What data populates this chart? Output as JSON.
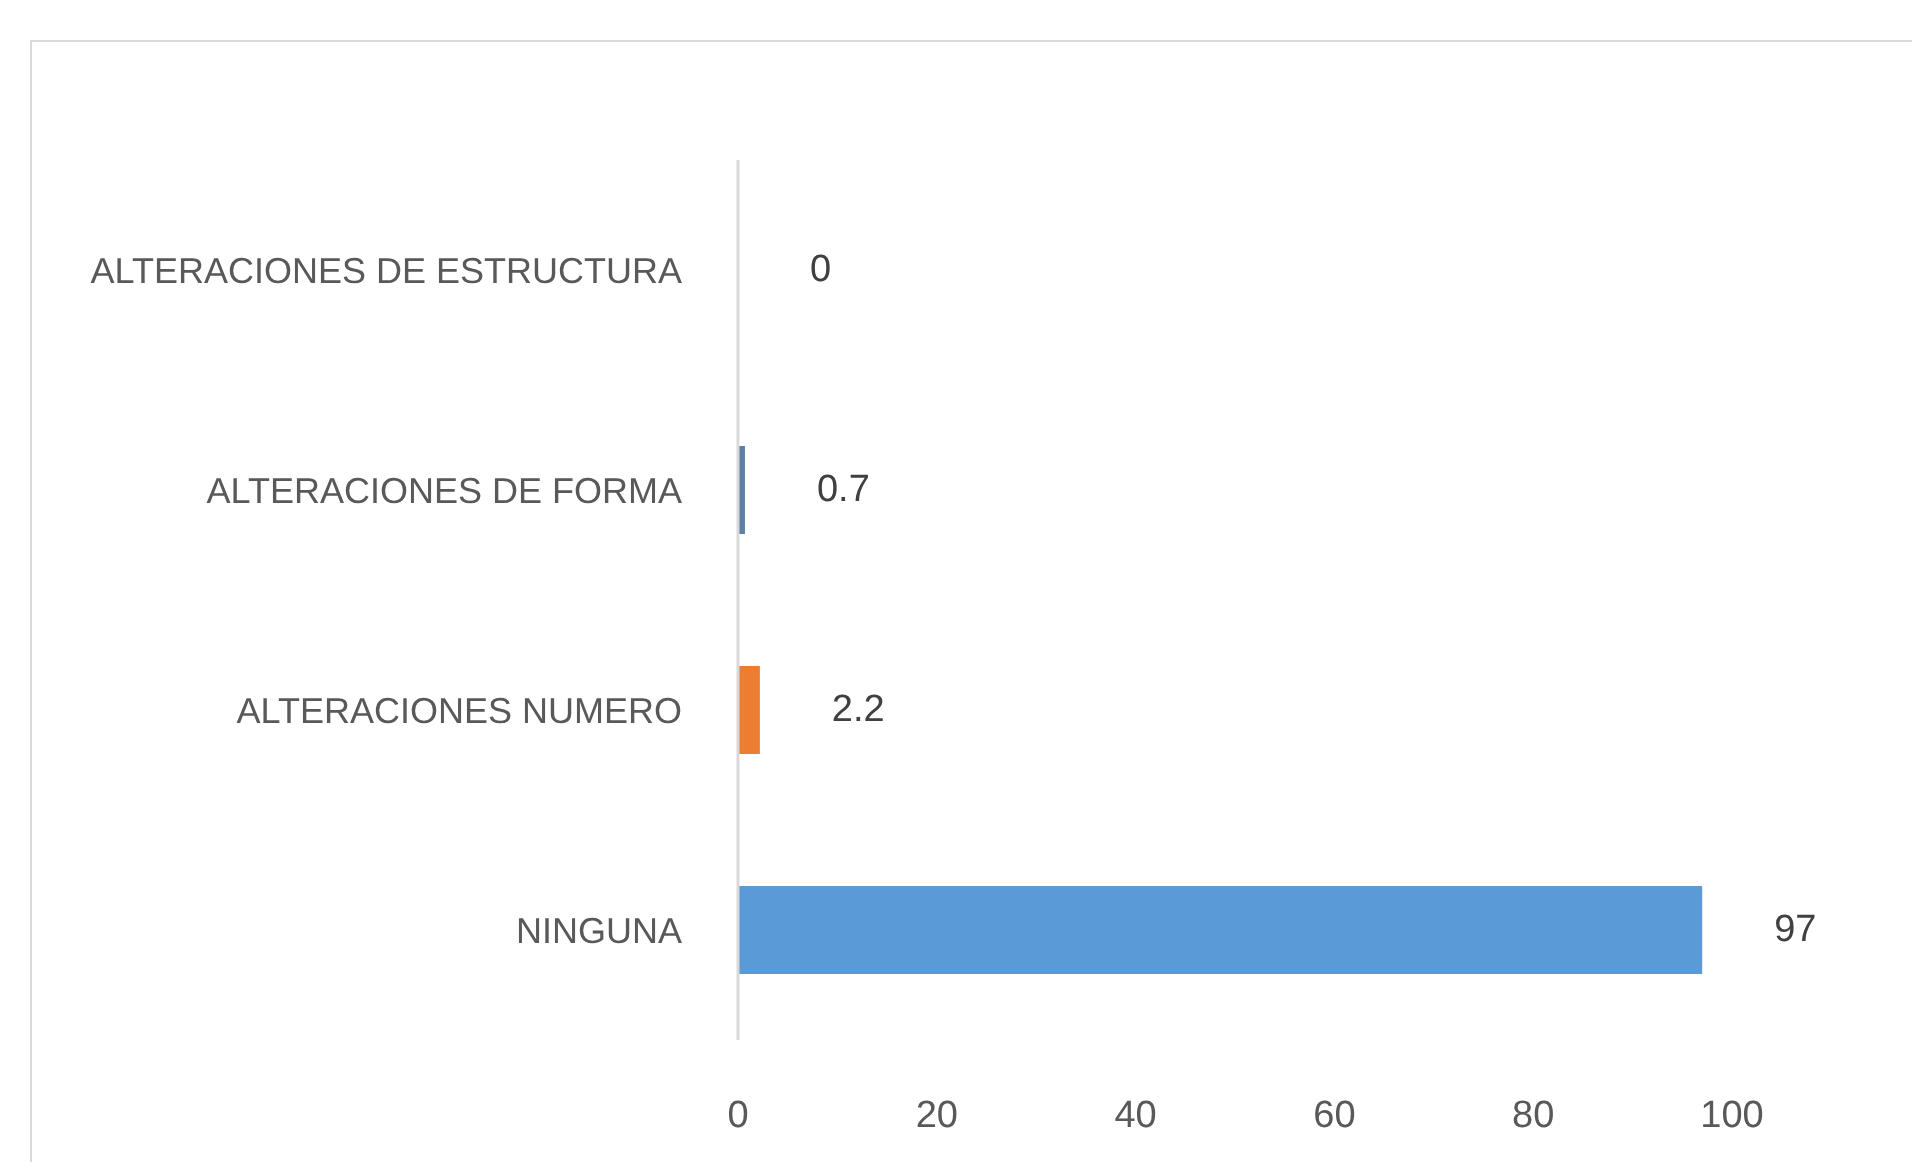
{
  "chart_data": {
    "type": "bar",
    "orientation": "horizontal",
    "categories": [
      "ALTERACIONES DE ESTRUCTURA",
      "ALTERACIONES DE FORMA",
      "ALTERACIONES NUMERO",
      "NINGUNA"
    ],
    "values": [
      0,
      0.7,
      2.2,
      97
    ],
    "colors": [
      "#262626",
      "#5f7fa4",
      "#ed7d31",
      "#5b9bd5"
    ],
    "xlim": [
      0,
      100
    ],
    "xticks": [
      0,
      20,
      40,
      60,
      80,
      100
    ],
    "grid": false,
    "data_labels": true
  }
}
